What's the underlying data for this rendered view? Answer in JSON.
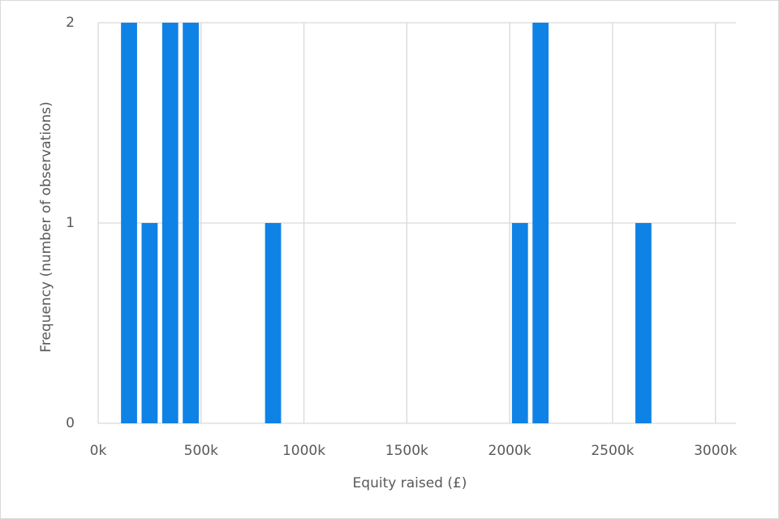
{
  "chart_data": {
    "type": "histogram",
    "x_label": "Equity raised (£)",
    "y_label": "Frequency (number of observations)",
    "bins": [
      100000,
      200000,
      300000,
      400000,
      500000,
      600000,
      700000,
      800000,
      900000,
      1000000,
      1100000,
      1200000,
      1300000,
      1400000,
      1500000,
      1600000,
      1700000,
      1800000,
      1900000,
      2000000,
      2100000,
      2200000,
      2300000,
      2400000,
      2500000,
      2600000,
      2700000
    ],
    "values": [
      2,
      1,
      2,
      2,
      0,
      0,
      0,
      1,
      0,
      0,
      0,
      0,
      0,
      0,
      0,
      0,
      0,
      0,
      0,
      1,
      2,
      0,
      0,
      0,
      0,
      1
    ],
    "color": "#0f82e6",
    "xlim": [
      0,
      3100000
    ],
    "xticks": [
      {
        "value": 0,
        "label": "0k"
      },
      {
        "value": 500000,
        "label": "500k"
      },
      {
        "value": 1000000,
        "label": "1000k"
      },
      {
        "value": 1500000,
        "label": "1500k"
      },
      {
        "value": 2000000,
        "label": "2000k"
      },
      {
        "value": 2500000,
        "label": "2500k"
      },
      {
        "value": 3000000,
        "label": "3000k"
      }
    ],
    "ylim": [
      0,
      2
    ],
    "yticks": [
      0,
      1,
      2
    ],
    "grid": true
  }
}
